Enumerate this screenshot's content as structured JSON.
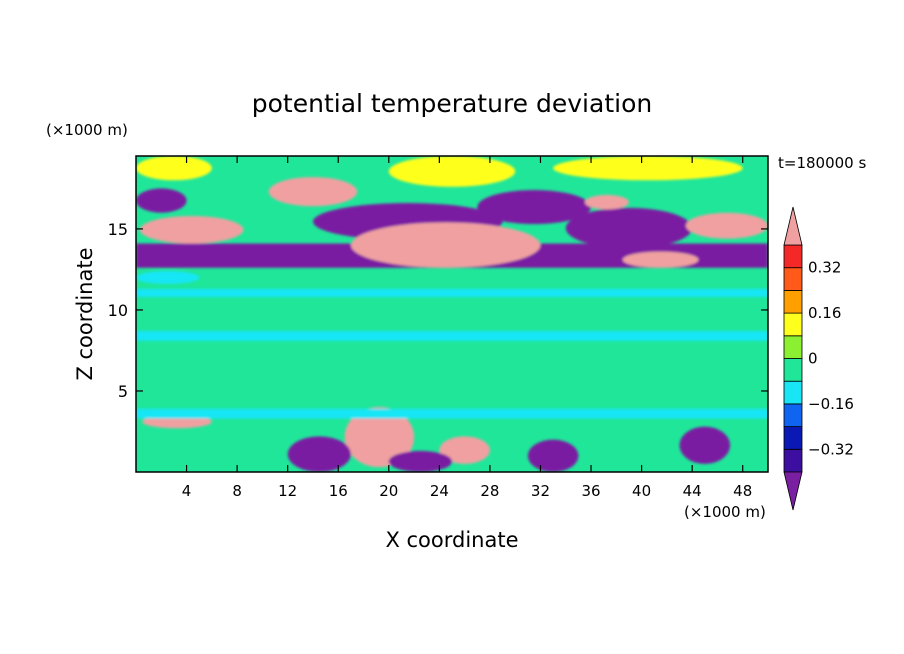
{
  "chart_data": {
    "type": "heatmap",
    "title": "potential temperature deviation",
    "xlabel": "X coordinate",
    "ylabel": "Z coordinate",
    "x_unit": "(×1000 m)",
    "z_unit": "(×1000 m)",
    "time_label": "t=180000 s",
    "xlim": [
      0,
      50
    ],
    "ylim": [
      0,
      19.5
    ],
    "x_ticks": [
      4,
      8,
      12,
      16,
      20,
      24,
      28,
      32,
      36,
      40,
      44,
      48
    ],
    "y_ticks": [
      5,
      10,
      15
    ],
    "grid": false,
    "legend": "right",
    "colorbar": {
      "levels": [
        -0.4,
        -0.32,
        -0.24,
        -0.16,
        -0.08,
        0,
        0.08,
        0.16,
        0.24,
        0.32,
        0.4
      ],
      "labels": [
        "0.32",
        "0.16",
        "0",
        "−0.16",
        "−0.32"
      ],
      "label_values": [
        0.32,
        0.16,
        0,
        -0.16,
        -0.32
      ],
      "colors": [
        "#7a1fa2",
        "#3c0fa0",
        "#0a18b4",
        "#0f64f0",
        "#19e6f5",
        "#20e69a",
        "#8cf032",
        "#ffff1e",
        "#ffa000",
        "#ff5a19",
        "#f52828",
        "#f0a0a0"
      ]
    },
    "regions": [
      {
        "value": -0.44,
        "shape": "rect",
        "x": [
          0,
          50
        ],
        "z": [
          12.6,
          14.1
        ]
      },
      {
        "value": -0.44,
        "shape": "ellipse",
        "x": [
          14,
          29
        ],
        "z": [
          14.3,
          16.6
        ]
      },
      {
        "value": -0.44,
        "shape": "ellipse",
        "x": [
          27,
          36
        ],
        "z": [
          15.3,
          17.4
        ]
      },
      {
        "value": -0.44,
        "shape": "ellipse",
        "x": [
          34,
          44
        ],
        "z": [
          13.8,
          16.3
        ]
      },
      {
        "value": -0.44,
        "shape": "ellipse",
        "x": [
          0,
          4
        ],
        "z": [
          16.0,
          17.5
        ]
      },
      {
        "value": 0.44,
        "shape": "ellipse",
        "x": [
          0.3,
          8.5
        ],
        "z": [
          14.1,
          15.8
        ]
      },
      {
        "value": 0.44,
        "shape": "ellipse",
        "x": [
          10.5,
          17.5
        ],
        "z": [
          16.4,
          18.2
        ]
      },
      {
        "value": 0.44,
        "shape": "ellipse",
        "x": [
          17,
          32
        ],
        "z": [
          12.6,
          15.4
        ]
      },
      {
        "value": 0.44,
        "shape": "ellipse",
        "x": [
          43.5,
          50
        ],
        "z": [
          14.4,
          16.0
        ]
      },
      {
        "value": 0.44,
        "shape": "ellipse",
        "x": [
          35.5,
          39
        ],
        "z": [
          16.2,
          17.1
        ]
      },
      {
        "value": 0.44,
        "shape": "ellipse",
        "x": [
          38.5,
          44.5
        ],
        "z": [
          12.6,
          13.6
        ]
      },
      {
        "value": 0.44,
        "shape": "ellipse",
        "x": [
          16.5,
          22
        ],
        "z": [
          0.3,
          4.0
        ]
      },
      {
        "value": 0.44,
        "shape": "ellipse",
        "x": [
          0.5,
          6
        ],
        "z": [
          2.7,
          3.5
        ]
      },
      {
        "value": 0.44,
        "shape": "ellipse",
        "x": [
          24,
          28
        ],
        "z": [
          0.5,
          2.2
        ]
      },
      {
        "value": -0.44,
        "shape": "ellipse",
        "x": [
          12,
          17
        ],
        "z": [
          0.0,
          2.2
        ]
      },
      {
        "value": -0.44,
        "shape": "ellipse",
        "x": [
          31,
          35
        ],
        "z": [
          0.0,
          2.0
        ]
      },
      {
        "value": -0.44,
        "shape": "ellipse",
        "x": [
          43,
          47
        ],
        "z": [
          0.5,
          2.8
        ]
      },
      {
        "value": -0.44,
        "shape": "ellipse",
        "x": [
          20,
          25
        ],
        "z": [
          0.0,
          1.3
        ]
      },
      {
        "value": -0.16,
        "shape": "rect",
        "x": [
          0,
          50
        ],
        "z": [
          3.3,
          3.9
        ]
      },
      {
        "value": -0.16,
        "shape": "rect",
        "x": [
          0,
          50
        ],
        "z": [
          8.1,
          8.7
        ]
      },
      {
        "value": -0.16,
        "shape": "rect",
        "x": [
          0,
          50
        ],
        "z": [
          10.8,
          11.3
        ]
      },
      {
        "value": 0.08,
        "shape": "ellipse",
        "x": [
          20,
          30
        ],
        "z": [
          17.6,
          19.5
        ]
      },
      {
        "value": 0.08,
        "shape": "ellipse",
        "x": [
          33,
          48
        ],
        "z": [
          18.0,
          19.5
        ]
      },
      {
        "value": 0.08,
        "shape": "ellipse",
        "x": [
          0,
          6
        ],
        "z": [
          18.0,
          19.5
        ]
      },
      {
        "value": -0.16,
        "shape": "ellipse",
        "x": [
          0,
          5
        ],
        "z": [
          11.6,
          12.4
        ]
      }
    ]
  }
}
